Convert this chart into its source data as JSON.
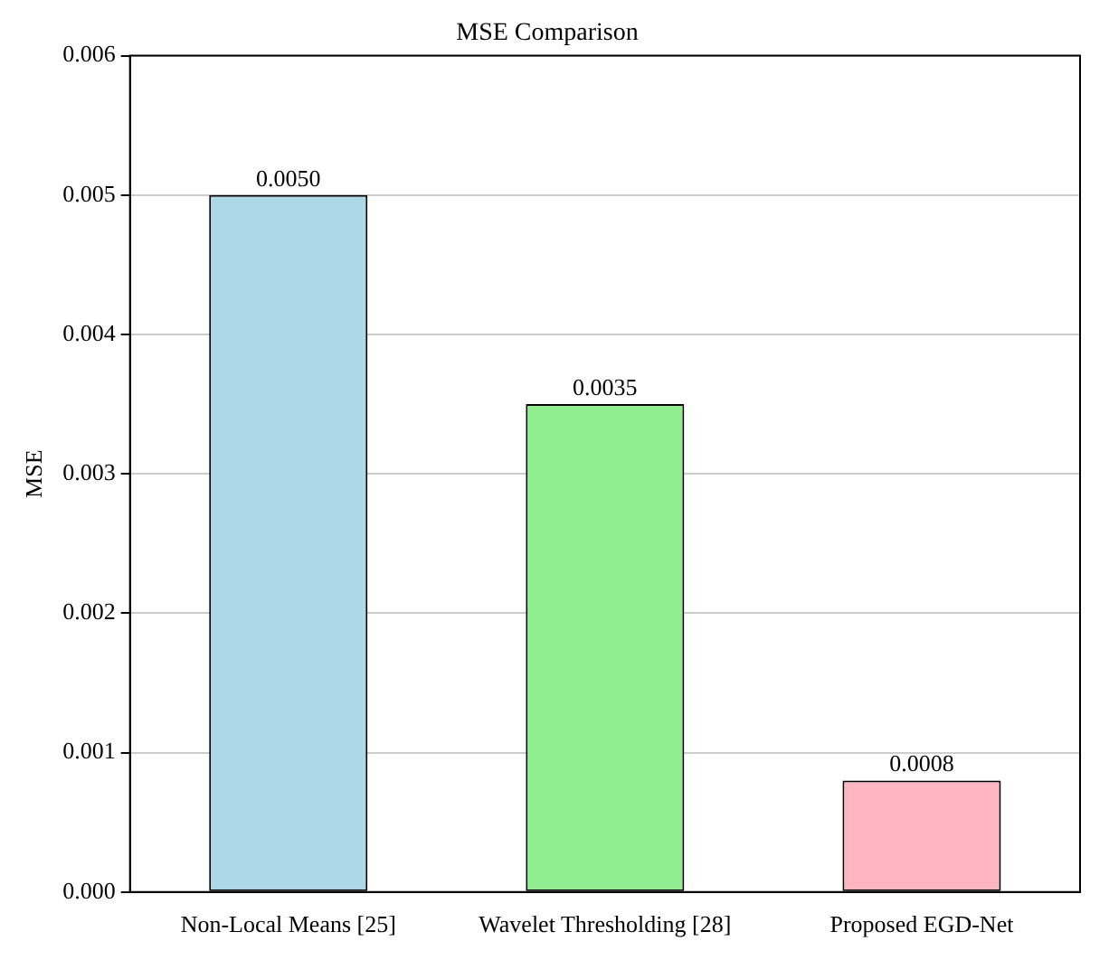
{
  "chart_data": {
    "type": "bar",
    "title": "MSE Comparison",
    "ylabel": "MSE",
    "categories": [
      "Non-Local Means [25]",
      "Wavelet Thresholding [28]",
      "Proposed EGD-Net"
    ],
    "values": [
      0.005,
      0.0035,
      0.0008
    ],
    "colors": [
      "#add8e6",
      "#90ee90",
      "#ffb6c1"
    ],
    "value_labels": [
      "0.0050",
      "0.0035",
      "0.0008"
    ],
    "ylim": [
      0,
      0.006
    ],
    "yticks": [
      {
        "value": 0,
        "label": "0.000"
      },
      {
        "value": 0.001,
        "label": "0.001"
      },
      {
        "value": 0.002,
        "label": "0.002"
      },
      {
        "value": 0.003,
        "label": "0.003"
      },
      {
        "value": 0.004,
        "label": "0.004"
      },
      {
        "value": 0.005,
        "label": "0.005"
      },
      {
        "value": 0.006,
        "label": "0.006"
      }
    ],
    "grid": "y",
    "legend": false
  }
}
